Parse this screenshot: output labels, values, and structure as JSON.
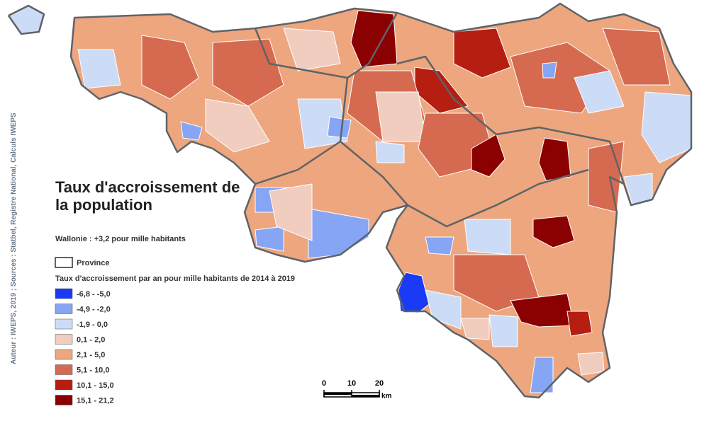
{
  "title_lines": [
    "Taux d'accroissement de",
    "la population"
  ],
  "subtitle": "Wallonie : +3,2 pour mille habitants",
  "province_label": "Province",
  "legend": {
    "title": "Taux d'accroissement par an pour mille habitants de 2014 à 2019",
    "classes": [
      {
        "label": "-6,8 - -5,0",
        "color": "#1a3af5"
      },
      {
        "label": "-4,9 - -2,0",
        "color": "#87a5f5"
      },
      {
        "label": "-1,9 - 0,0",
        "color": "#cddcf6"
      },
      {
        "label": "0,1 - 2,0",
        "color": "#f1cdbf"
      },
      {
        "label": "2,1 - 5,0",
        "color": "#eda67e"
      },
      {
        "label": "5,1 - 10,0",
        "color": "#d66a50"
      },
      {
        "label": "10,1 - 15,0",
        "color": "#b51e10"
      },
      {
        "label": "15,1 - 21,2",
        "color": "#8b0000"
      }
    ]
  },
  "scale": {
    "ticks": [
      0,
      10,
      20
    ],
    "unit": "km"
  },
  "credit": "Auteur : IWEPS, 2019 ; Sources : Statbel, Registre National, Calculs IWEPS"
}
